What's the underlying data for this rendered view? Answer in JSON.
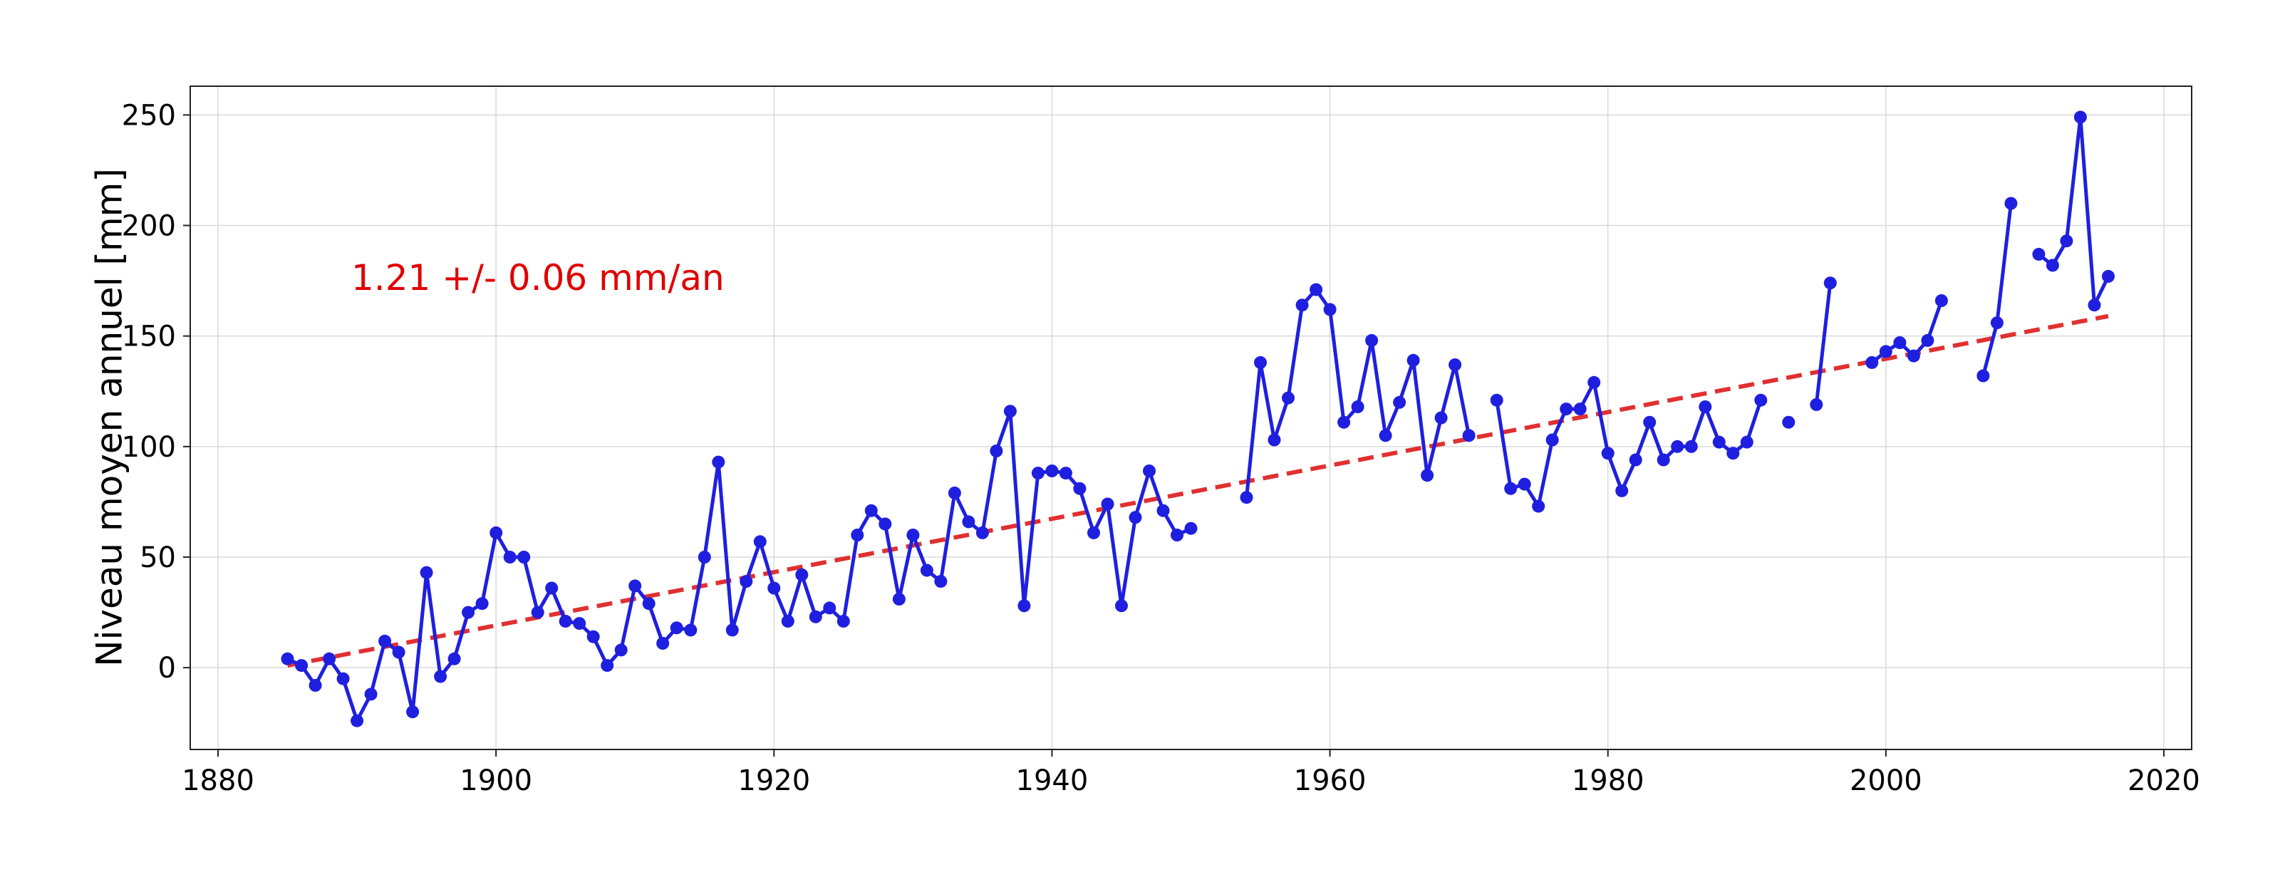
{
  "chart_data": {
    "type": "line",
    "title": "",
    "xlabel": "",
    "ylabel": "Niveau moyen annuel [mm]",
    "xlim": [
      1878,
      2022
    ],
    "ylim": [
      -37,
      263
    ],
    "xticks": [
      1880,
      1900,
      1920,
      1940,
      1960,
      1980,
      2000,
      2020
    ],
    "yticks": [
      0,
      50,
      100,
      150,
      200,
      250
    ],
    "grid": true,
    "legend": "none",
    "annotation": "1.21 +/- 0.06 mm/an",
    "colors": {
      "series": "#1f1fe0",
      "trend": "#e03030",
      "annotation": "#e00000"
    },
    "series": [
      {
        "style": "line-with-markers",
        "x": [
          1885,
          1886,
          1887,
          1888,
          1889,
          1890,
          1891,
          1892,
          1893,
          1894,
          1895,
          1896,
          1897,
          1898,
          1899,
          1900,
          1901,
          1902,
          1903,
          1904,
          1905,
          1906,
          1907,
          1908,
          1909,
          1910,
          1911,
          1912,
          1913,
          1914,
          1915,
          1916,
          1917,
          1918,
          1919,
          1920,
          1921,
          1922,
          1923,
          1924,
          1925,
          1926,
          1927,
          1928,
          1929,
          1930,
          1931,
          1932,
          1933,
          1934,
          1935,
          1936,
          1937,
          1938,
          1939,
          1940,
          1941,
          1942,
          1943,
          1944,
          1945,
          1946,
          1947,
          1948,
          1949,
          1950,
          1951,
          1952,
          1953,
          1954,
          1955,
          1956,
          1957,
          1958,
          1959,
          1960,
          1961,
          1962,
          1963,
          1964,
          1965,
          1966,
          1967,
          1968,
          1969,
          1970,
          1971,
          1972,
          1973,
          1974,
          1975,
          1976,
          1977,
          1978,
          1979,
          1980,
          1981,
          1982,
          1983,
          1984,
          1985,
          1986,
          1987,
          1988,
          1989,
          1990,
          1991,
          1992,
          1993,
          1994,
          1995,
          1996,
          1997,
          1998,
          1999,
          2000,
          2001,
          2002,
          2003,
          2004,
          2005,
          2006,
          2007,
          2008,
          2009,
          2010,
          2011,
          2012,
          2013,
          2014,
          2015,
          2016
        ],
        "y": [
          4,
          1,
          -8,
          4,
          -5,
          -24,
          -12,
          12,
          7,
          -20,
          43,
          -4,
          4,
          25,
          29,
          61,
          50,
          50,
          25,
          36,
          21,
          20,
          14,
          1,
          8,
          37,
          29,
          11,
          18,
          17,
          50,
          93,
          17,
          39,
          57,
          36,
          21,
          42,
          23,
          27,
          21,
          60,
          71,
          65,
          31,
          60,
          44,
          39,
          79,
          66,
          61,
          98,
          116,
          28,
          88,
          89,
          88,
          81,
          61,
          74,
          28,
          68,
          89,
          71,
          60,
          63,
          null,
          null,
          null,
          77,
          138,
          103,
          122,
          164,
          171,
          162,
          111,
          118,
          148,
          105,
          120,
          139,
          87,
          113,
          137,
          105,
          null,
          121,
          81,
          83,
          73,
          103,
          117,
          117,
          129,
          97,
          80,
          94,
          111,
          94,
          100,
          100,
          118,
          102,
          97,
          102,
          121,
          null,
          111,
          null,
          119,
          174,
          null,
          null,
          138,
          143,
          147,
          141,
          148,
          166,
          null,
          null,
          132,
          156,
          210,
          null,
          187,
          182,
          193,
          249,
          164,
          177
        ]
      },
      {
        "style": "dashed-trend",
        "x": [
          1885,
          2016
        ],
        "y": [
          1,
          159
        ]
      }
    ]
  }
}
